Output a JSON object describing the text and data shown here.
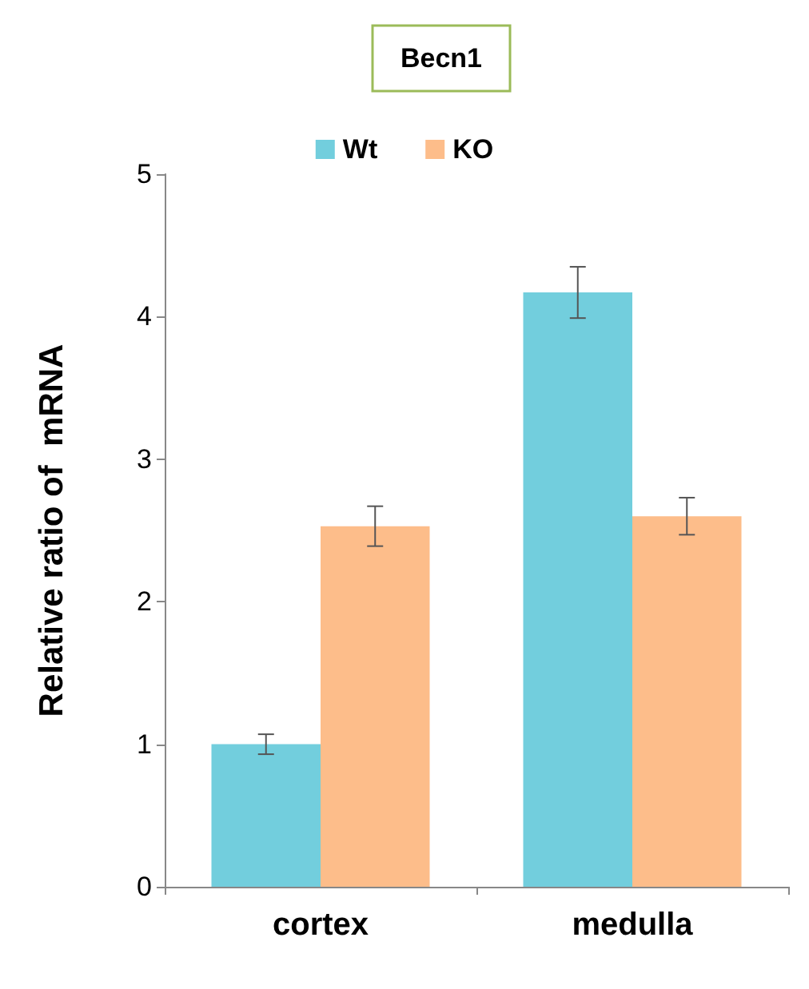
{
  "chart_data": {
    "type": "bar",
    "title": "Becn1",
    "ylabel": "Relative ratio of  mRNA",
    "categories": [
      "cortex",
      "medulla"
    ],
    "series": [
      {
        "name": "Wt",
        "color": "#72cedd",
        "values": [
          1.0,
          4.17
        ],
        "errors": [
          0.07,
          0.18
        ]
      },
      {
        "name": "KO",
        "color": "#fdbd8a",
        "values": [
          2.53,
          2.6
        ],
        "errors": [
          0.14,
          0.13
        ]
      }
    ],
    "ylim": [
      0,
      5
    ],
    "yticks": [
      0,
      1,
      2,
      3,
      4,
      5
    ],
    "grid": false,
    "legend": "top"
  }
}
